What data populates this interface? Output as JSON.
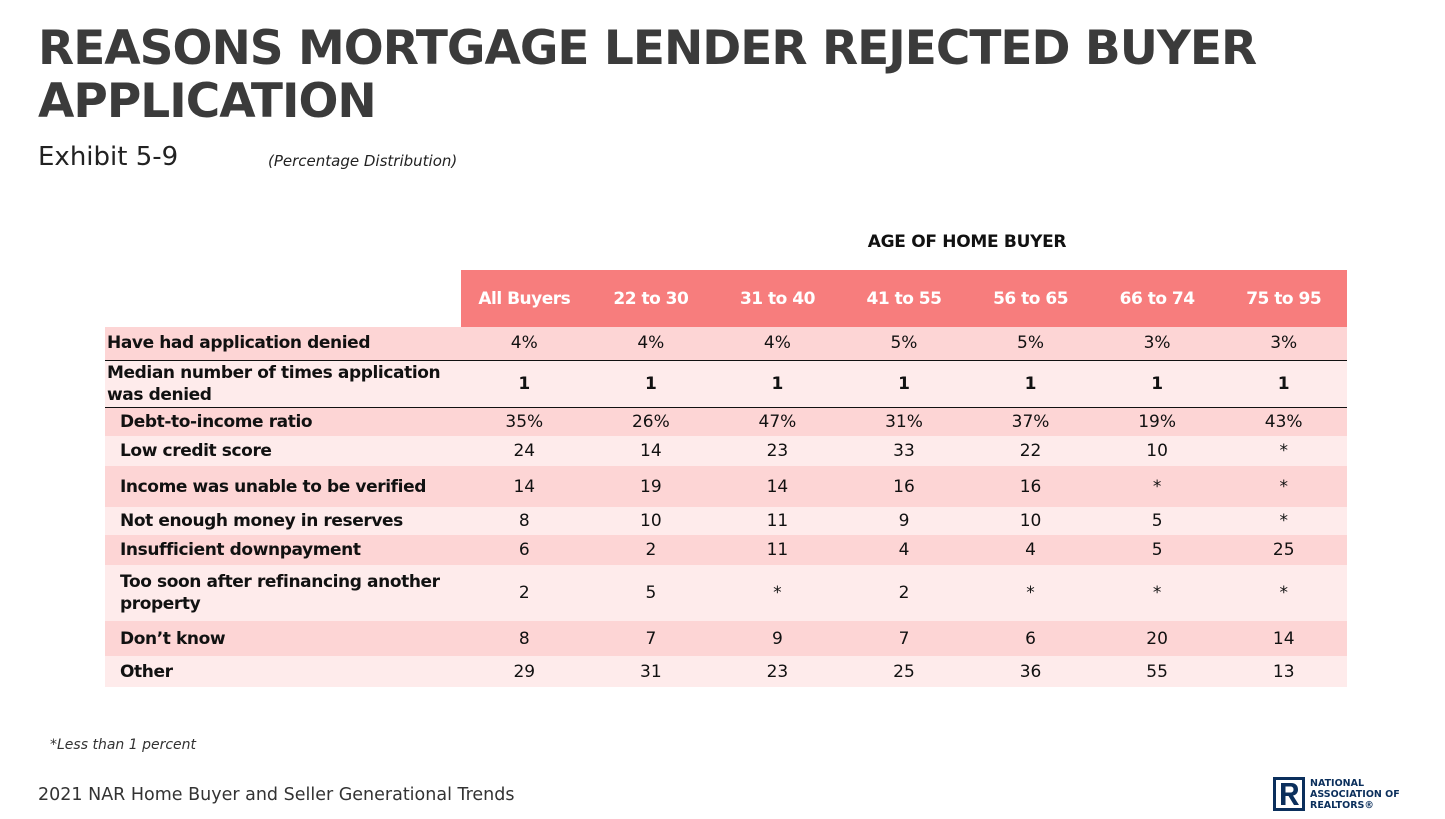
{
  "title": "REASONS MORTGAGE LENDER REJECTED BUYER APPLICATION",
  "exhibit": "Exhibit 5-9",
  "subtitle": "(Percentage Distribution)",
  "group_header": "AGE OF HOME BUYER",
  "columns": [
    "All Buyers",
    "22 to 30",
    "31 to 40",
    "41 to 55",
    "56 to 65",
    "66 to 74",
    "75 to 95"
  ],
  "rows": [
    {
      "label": "Have had application denied",
      "values": [
        "4%",
        "4%",
        "4%",
        "5%",
        "5%",
        "3%",
        "3%"
      ]
    },
    {
      "label": "Median number of times application was denied",
      "values": [
        "1",
        "1",
        "1",
        "1",
        "1",
        "1",
        "1"
      ]
    },
    {
      "label": "Debt-to-income ratio",
      "values": [
        "35%",
        "26%",
        "47%",
        "31%",
        "37%",
        "19%",
        "43%"
      ]
    },
    {
      "label": "Low credit score",
      "values": [
        "24",
        "14",
        "23",
        "33",
        "22",
        "10",
        "*"
      ]
    },
    {
      "label": "Income was unable to be verified",
      "values": [
        "14",
        "19",
        "14",
        "16",
        "16",
        "*",
        "*"
      ]
    },
    {
      "label": "Not enough money in reserves",
      "values": [
        "8",
        "10",
        "11",
        "9",
        "10",
        "5",
        "*"
      ]
    },
    {
      "label": "Insufficient downpayment",
      "values": [
        "6",
        "2",
        "11",
        "4",
        "4",
        "5",
        "25"
      ]
    },
    {
      "label": "Too soon after refinancing another property",
      "values": [
        "2",
        "5",
        "*",
        "2",
        "*",
        "*",
        "*"
      ]
    },
    {
      "label": "Don’t know",
      "values": [
        "8",
        "7",
        "9",
        "7",
        "6",
        "20",
        "14"
      ]
    },
    {
      "label": "Other",
      "values": [
        "29",
        "31",
        "23",
        "25",
        "36",
        "55",
        "13"
      ]
    }
  ],
  "footnote": "*Less than 1 percent",
  "footer": "2021 NAR Home Buyer and Seller Generational Trends",
  "logo": {
    "line1": "NATIONAL",
    "line2": "ASSOCIATION OF",
    "line3": "REALTORS®",
    "color": "#0b2f5c"
  },
  "colors": {
    "header_fill": "#f77d7d",
    "row_dark": "#fdd5d5",
    "row_light": "#feebeb"
  }
}
